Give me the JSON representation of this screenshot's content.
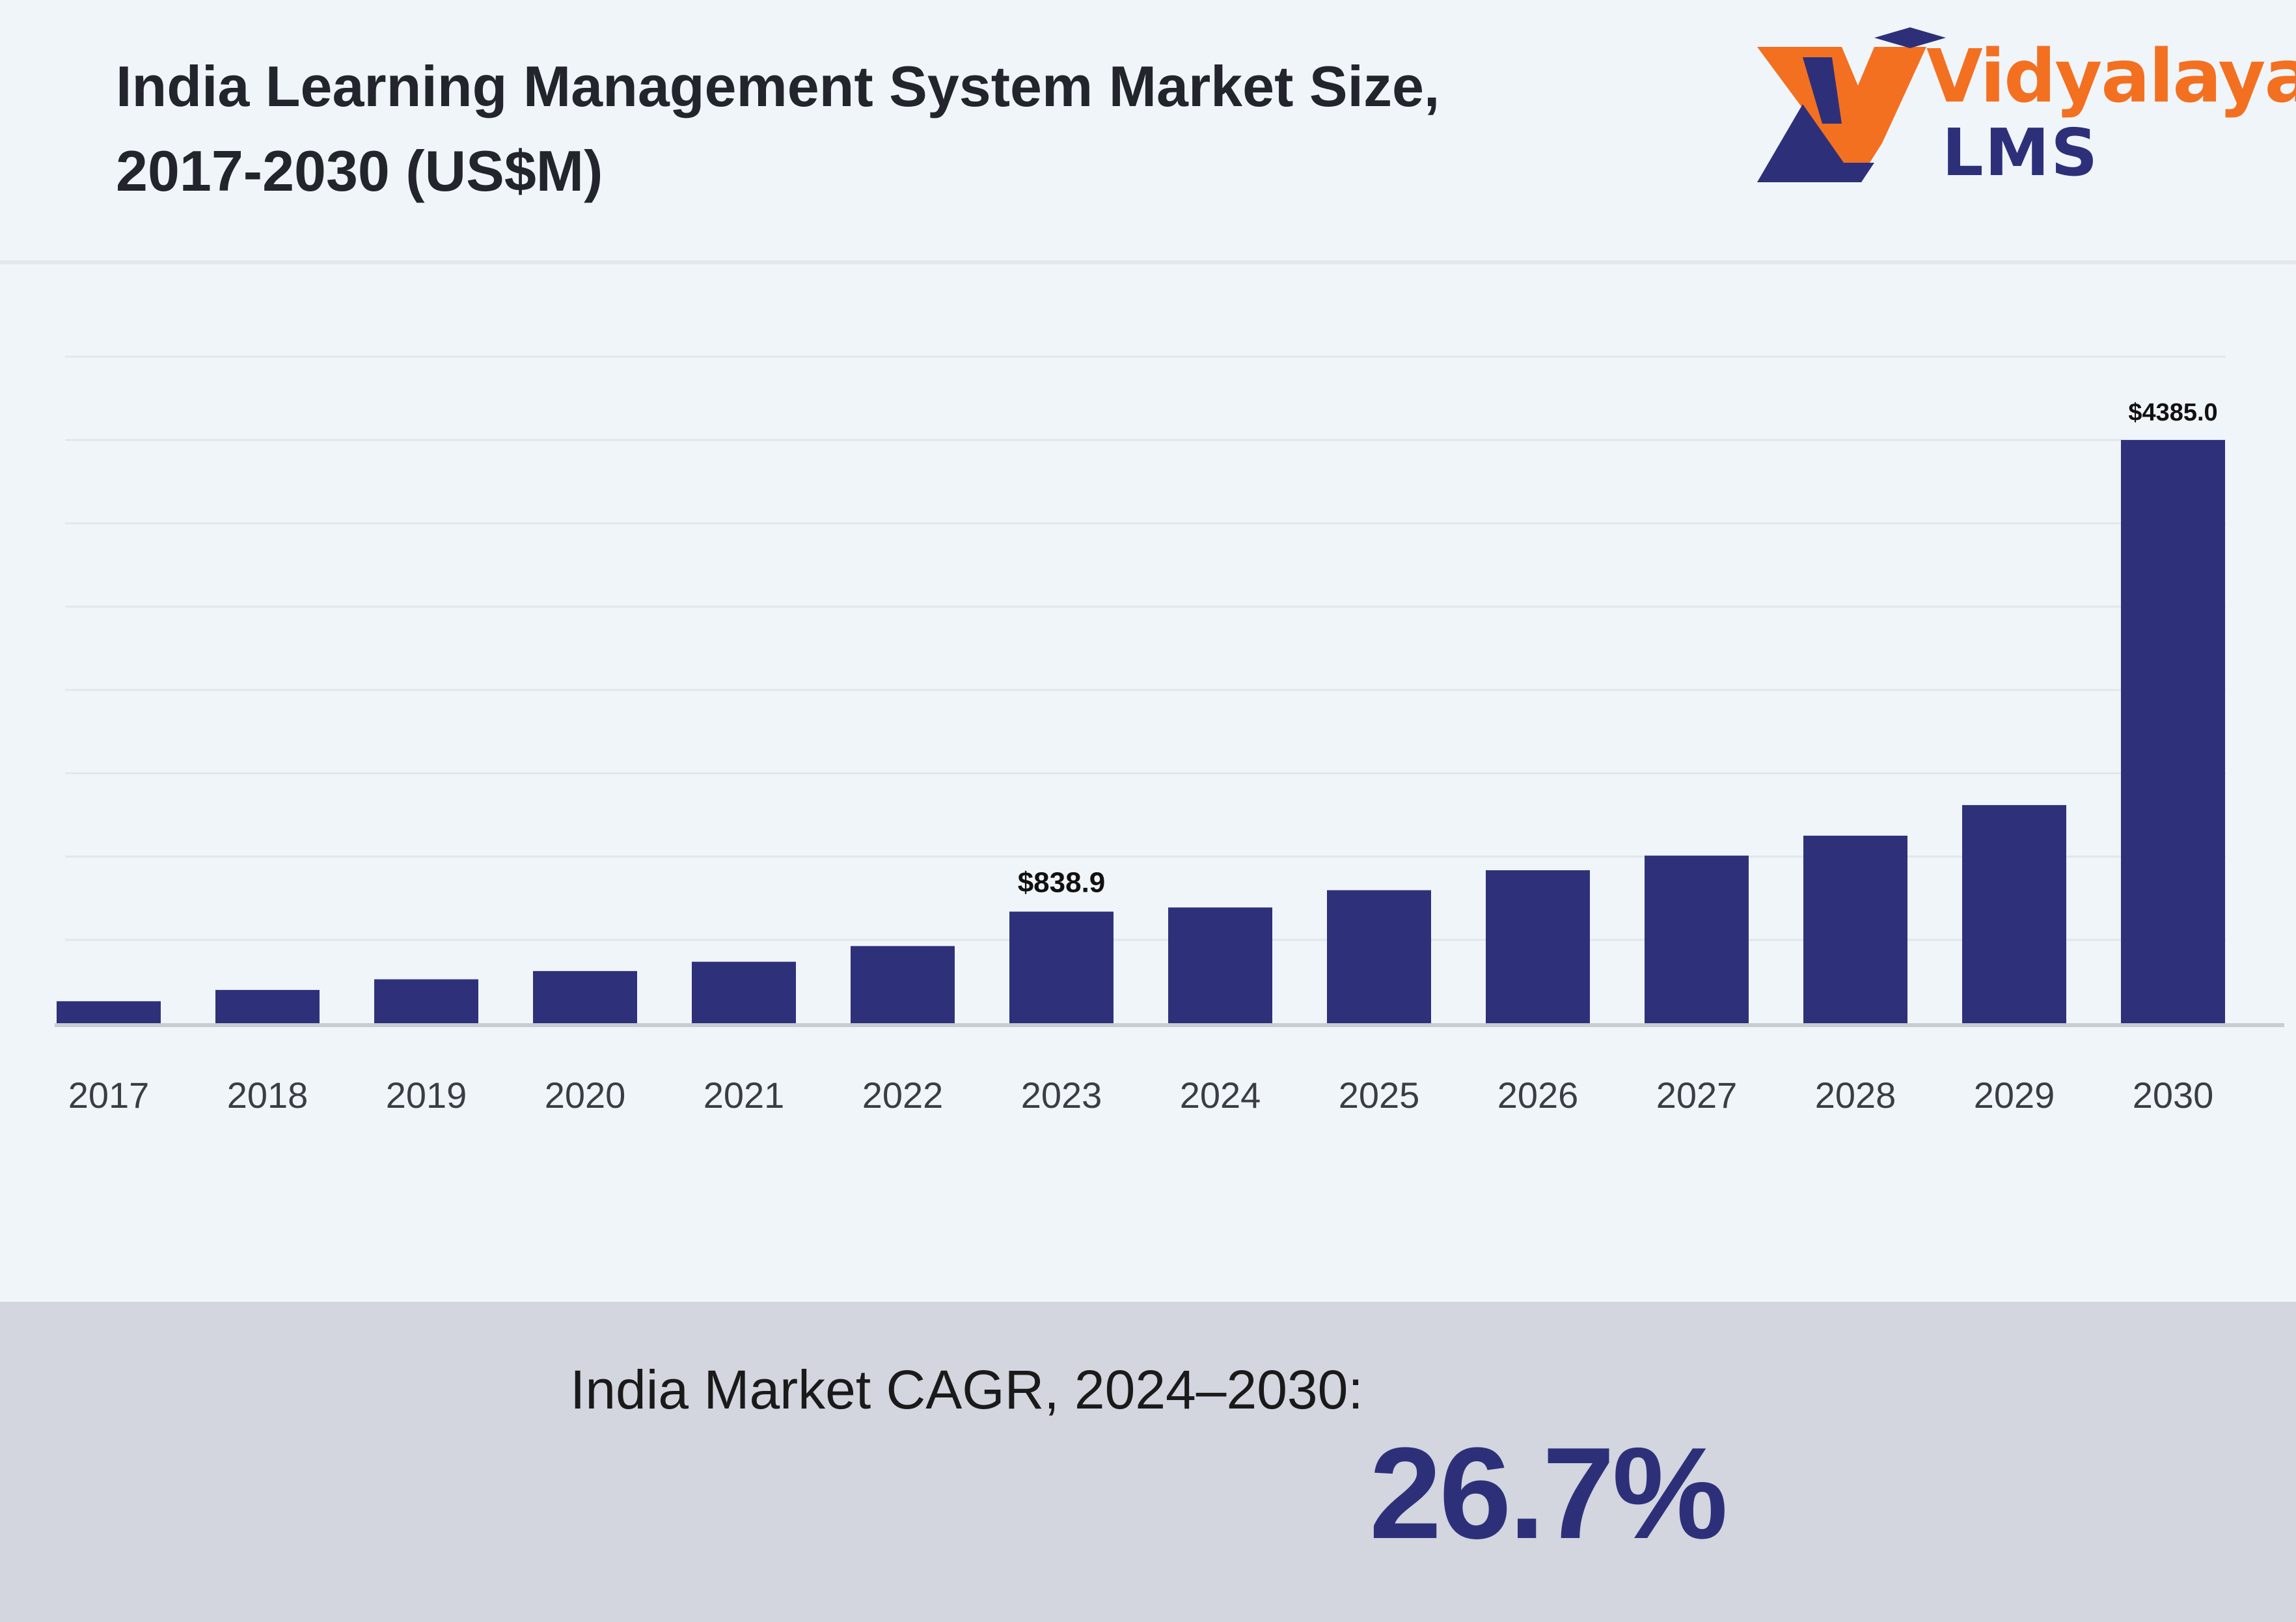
{
  "header": {
    "title_line1": "India Learning Management System Market Size,",
    "title_line2": "2017-2030 (US$M)"
  },
  "logo": {
    "word": "Vidyalaya",
    "sub": "LMS",
    "colors": {
      "orange": "#f37021",
      "navy": "#2d3079"
    }
  },
  "chart_data": {
    "type": "bar",
    "title": "India Learning Management System Market Size, 2017-2030 (US$M)",
    "categories": [
      "2017",
      "2018",
      "2019",
      "2020",
      "2021",
      "2022",
      "2023",
      "2024",
      "2025",
      "2026",
      "2027",
      "2028",
      "2029",
      "2030"
    ],
    "values": [
      165,
      250,
      330,
      392,
      462,
      580,
      838.9,
      870,
      1000,
      1150,
      1260,
      1410,
      1640,
      4385.0
    ],
    "data_labels": {
      "2023": "$838.9",
      "2030": "$4385.0"
    },
    "xlabel": "",
    "ylabel": "",
    "grid": true,
    "bar_color": "#2e3179"
  },
  "footer": {
    "cagr_label": "India Market CAGR, 2024–2030:",
    "cagr_value": "26.7%"
  }
}
